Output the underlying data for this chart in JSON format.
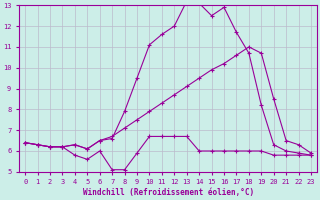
{
  "xlabel": "Windchill (Refroidissement éolien,°C)",
  "bg_color": "#cceee8",
  "line_color": "#990099",
  "grid_color": "#bbbbcc",
  "xlim": [
    -0.5,
    23.5
  ],
  "ylim": [
    5,
    13
  ],
  "xticks": [
    0,
    1,
    2,
    3,
    4,
    5,
    6,
    7,
    8,
    9,
    10,
    11,
    12,
    13,
    14,
    15,
    16,
    17,
    18,
    19,
    20,
    21,
    22,
    23
  ],
  "yticks": [
    5,
    6,
    7,
    8,
    9,
    10,
    11,
    12,
    13
  ],
  "line1_x": [
    0,
    1,
    2,
    3,
    4,
    5,
    6,
    7,
    8,
    9,
    10,
    11,
    12,
    13,
    14,
    15,
    16,
    17,
    18,
    19,
    20,
    21,
    22,
    23
  ],
  "line1_y": [
    6.4,
    6.3,
    6.2,
    6.2,
    5.8,
    5.6,
    6.0,
    5.1,
    5.1,
    5.9,
    6.7,
    6.7,
    6.7,
    6.7,
    6.0,
    6.0,
    6.0,
    6.0,
    6.0,
    6.0,
    5.8,
    5.8,
    5.8,
    5.8
  ],
  "line2_x": [
    0,
    1,
    2,
    3,
    4,
    5,
    6,
    7,
    8,
    9,
    10,
    11,
    12,
    13,
    14,
    15,
    16,
    17,
    18,
    19,
    20,
    21,
    22,
    23
  ],
  "line2_y": [
    6.4,
    6.3,
    6.2,
    6.2,
    6.3,
    6.1,
    6.5,
    6.6,
    7.9,
    9.5,
    11.1,
    11.6,
    12.0,
    13.2,
    13.1,
    12.5,
    12.9,
    11.7,
    10.7,
    8.2,
    6.3,
    6.0,
    5.9,
    5.8
  ],
  "line3_x": [
    0,
    1,
    2,
    3,
    4,
    5,
    6,
    7,
    8,
    9,
    10,
    11,
    12,
    13,
    14,
    15,
    16,
    17,
    18,
    19,
    20,
    21,
    22,
    23
  ],
  "line3_y": [
    6.4,
    6.3,
    6.2,
    6.2,
    6.3,
    6.1,
    6.5,
    6.7,
    7.1,
    7.5,
    7.9,
    8.3,
    8.7,
    9.1,
    9.5,
    9.9,
    10.2,
    10.6,
    11.0,
    10.7,
    8.5,
    6.5,
    6.3,
    5.9
  ]
}
